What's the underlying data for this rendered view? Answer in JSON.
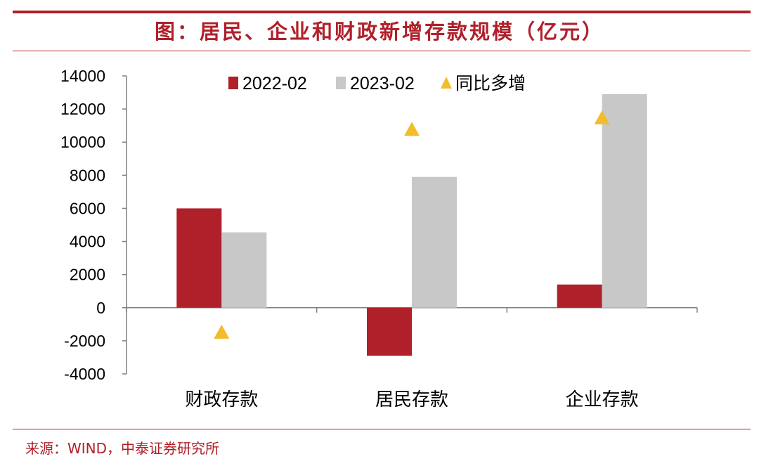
{
  "title": "图：居民、企业和财政新增存款规模（亿元）",
  "source": "来源：WIND，中泰证券研究所",
  "colors": {
    "s2022": "#b0202a",
    "s2023": "#c8c8c8",
    "marker": "#f2bc2a",
    "accent": "#b0202a"
  },
  "chart_data": {
    "type": "bar",
    "title": "居民、企业和财政新增存款规模（亿元）",
    "categories": [
      "财政存款",
      "居民存款",
      "企业存款"
    ],
    "series": [
      {
        "name": "2022-02",
        "kind": "bar",
        "values": [
          6000,
          -2900,
          1400
        ]
      },
      {
        "name": "2023-02",
        "kind": "bar",
        "values": [
          4550,
          7900,
          12900
        ]
      },
      {
        "name": "同比多增",
        "kind": "marker",
        "values": [
          -1450,
          10800,
          11500
        ]
      }
    ],
    "yticks": [
      "14000",
      "12000",
      "10000",
      "8000",
      "6000",
      "4000",
      "2000",
      "0",
      "-2000",
      "-4000"
    ],
    "ylim": [
      -4000,
      14000
    ],
    "legend_position": "top-center"
  }
}
